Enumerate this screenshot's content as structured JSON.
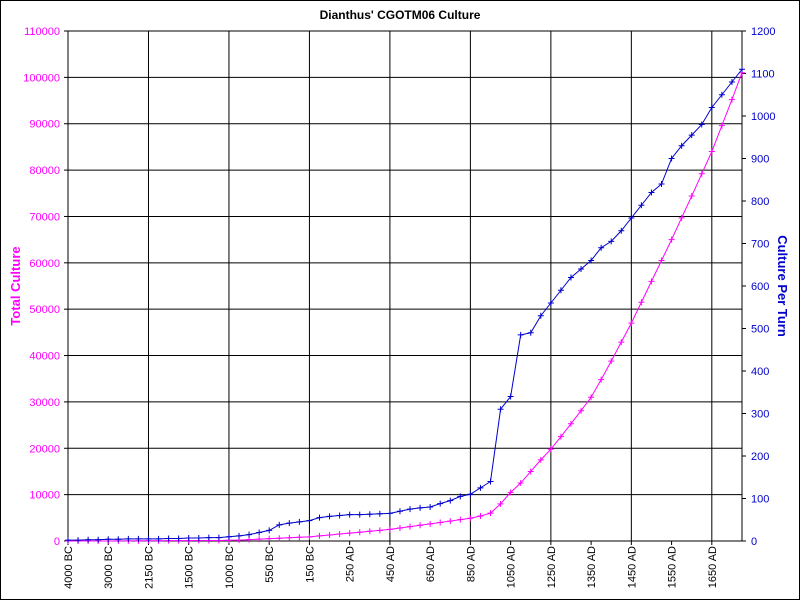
{
  "chart_data": {
    "type": "line",
    "title": "Dianthus' CGOTM06 Culture",
    "y_label": "Total Culture",
    "y2_label": "Culture Per Turn",
    "categories": [
      "4000 BC",
      null,
      null,
      null,
      "3000 BC",
      null,
      null,
      null,
      "2150 BC",
      null,
      null,
      null,
      "1500 BC",
      null,
      null,
      null,
      "1000 BC",
      null,
      null,
      null,
      "550 BC",
      null,
      null,
      null,
      "150 BC",
      null,
      null,
      null,
      "250 AD",
      null,
      null,
      null,
      "450 AD",
      null,
      null,
      null,
      "650 AD",
      null,
      null,
      null,
      "850 AD",
      null,
      null,
      null,
      "1050 AD",
      null,
      null,
      null,
      "1250 AD",
      null,
      null,
      null,
      "1350 AD",
      null,
      null,
      null,
      "1450 AD",
      null,
      null,
      null,
      "1550 AD",
      null,
      null,
      null,
      "1650 AD",
      null,
      null,
      null
    ],
    "series": [
      {
        "color": "#ff00ff",
        "axis": "y",
        "values": [
          0,
          0,
          0,
          0,
          10,
          20,
          30,
          40,
          50,
          60,
          70,
          80,
          90,
          100,
          110,
          120,
          150,
          200,
          300,
          400,
          500,
          600,
          700,
          800,
          900,
          1100,
          1300,
          1500,
          1700,
          1900,
          2100,
          2300,
          2500,
          2800,
          3100,
          3400,
          3700,
          4000,
          4300,
          4600,
          4900,
          5400,
          6000,
          8000,
          10500,
          12500,
          15000,
          17500,
          19800,
          22500,
          25300,
          28100,
          31000,
          34800,
          38800,
          42900,
          47000,
          51500,
          56000,
          60500,
          65000,
          69700,
          74400,
          79200,
          84000,
          89600,
          95200,
          101000
        ]
      },
      {
        "color": "#0000cc",
        "axis": "y2",
        "values": [
          2,
          2,
          3,
          3,
          4,
          4,
          5,
          5,
          5,
          5,
          6,
          6,
          7,
          7,
          8,
          8,
          10,
          12,
          15,
          20,
          25,
          38,
          42,
          45,
          48,
          55,
          58,
          60,
          62,
          62,
          63,
          64,
          65,
          70,
          75,
          78,
          80,
          88,
          95,
          105,
          110,
          125,
          140,
          310,
          340,
          485,
          490,
          530,
          560,
          590,
          620,
          640,
          660,
          690,
          705,
          730,
          760,
          790,
          820,
          840,
          900,
          930,
          955,
          980,
          1020,
          1050,
          1080,
          1110
        ]
      }
    ],
    "ylim": [
      0,
      110000
    ],
    "yticks": [
      0,
      10000,
      20000,
      30000,
      40000,
      50000,
      60000,
      70000,
      80000,
      90000,
      100000,
      110000
    ],
    "y2lim": [
      0,
      1200
    ],
    "y2ticks": [
      0,
      100,
      200,
      300,
      400,
      500,
      600,
      700,
      800,
      900,
      1000,
      1100,
      1200
    ],
    "grid": true
  }
}
